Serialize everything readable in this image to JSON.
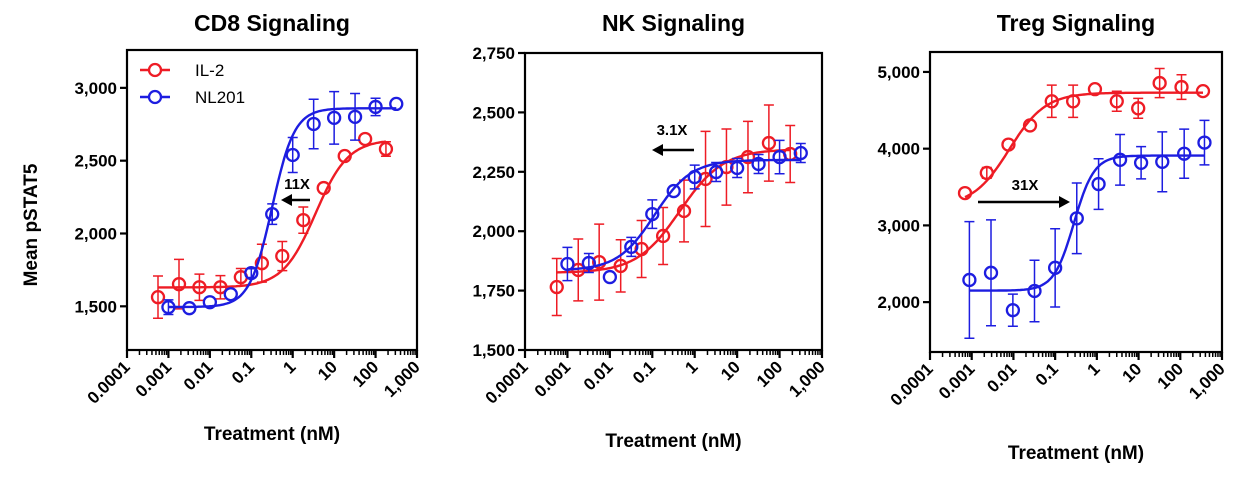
{
  "chart_data": [
    {
      "type": "scatter",
      "title": "CD8 Signaling",
      "xlabel": "Treatment (nM)",
      "ylabel": "Mean pSTAT5",
      "xscale": "log",
      "xlim": [
        0.0001,
        1000
      ],
      "ylim": [
        1200,
        3260
      ],
      "xticks": [
        "0.0001",
        "0.001",
        "0.01",
        "0.1",
        "1",
        "10",
        "100",
        "1,000"
      ],
      "yticks": [
        {
          "v": 1500,
          "label": "1,500"
        },
        {
          "v": 2000,
          "label": "2,000"
        },
        {
          "v": 2500,
          "label": "2,500"
        },
        {
          "v": 3000,
          "label": "3,000"
        }
      ],
      "legend": {
        "position": "top-left",
        "entries": [
          "IL-2",
          "NL201"
        ]
      },
      "annotation": {
        "text": "11X",
        "direction": "left"
      },
      "series": [
        {
          "name": "IL-2",
          "color": "#ee1c25",
          "x": [
            0.00056,
            0.0018,
            0.0056,
            0.018,
            0.056,
            0.18,
            0.56,
            1.8,
            5.6,
            18,
            56,
            178
          ],
          "y": [
            1563,
            1652,
            1631,
            1631,
            1700,
            1796,
            1845,
            2092,
            2312,
            2532,
            2649,
            2580
          ],
          "err": [
            145,
            170,
            90,
            80,
            60,
            130,
            100,
            90,
            0,
            0,
            0,
            50
          ],
          "fit": {
            "bottom": 1630,
            "top": 2645,
            "log_ec50": 0.55,
            "hill": 1.1
          }
        },
        {
          "name": "NL201",
          "color": "#1d1de0",
          "x": [
            0.001,
            0.0032,
            0.01,
            0.032,
            0.1,
            0.32,
            1,
            3.2,
            10,
            32,
            100,
            316
          ],
          "y": [
            1494,
            1487,
            1528,
            1583,
            1728,
            2133,
            2539,
            2752,
            2794,
            2801,
            2869,
            2890
          ],
          "err": [
            50,
            0,
            0,
            0,
            30,
            70,
            120,
            170,
            180,
            160,
            60,
            0
          ],
          "fit": {
            "bottom": 1495,
            "top": 2860,
            "log_ec50": -0.5,
            "hill": 1.6
          }
        }
      ]
    },
    {
      "type": "scatter",
      "title": "NK Signaling",
      "xlabel": "Treatment (nM)",
      "ylabel": "",
      "xscale": "log",
      "xlim": [
        0.0001,
        1000
      ],
      "ylim": [
        1500,
        2750
      ],
      "xticks": [
        "0.0001",
        "0.001",
        "0.01",
        "0.1",
        "1",
        "10",
        "100",
        "1,000"
      ],
      "yticks": [
        {
          "v": 1500,
          "label": "1,500"
        },
        {
          "v": 1750,
          "label": "1,750"
        },
        {
          "v": 2000,
          "label": "2,000"
        },
        {
          "v": 2250,
          "label": "2,250"
        },
        {
          "v": 2500,
          "label": "2,500"
        },
        {
          "v": 2750,
          "label": "2,750"
        }
      ],
      "annotation": {
        "text": "3.1X",
        "direction": "left"
      },
      "series": [
        {
          "name": "IL-2",
          "color": "#ee1c25",
          "x": [
            0.00056,
            0.0018,
            0.0056,
            0.018,
            0.056,
            0.18,
            0.56,
            1.8,
            5.6,
            18,
            56,
            178
          ],
          "y": [
            1765,
            1837,
            1870,
            1854,
            1925,
            1980,
            2085,
            2220,
            2270,
            2312,
            2371,
            2325
          ],
          "err": [
            120,
            130,
            160,
            110,
            120,
            120,
            130,
            200,
            160,
            150,
            160,
            120
          ],
          "fit": {
            "bottom": 1825,
            "top": 2345,
            "log_ec50": -0.35,
            "hill": 0.85
          }
        },
        {
          "name": "NL201",
          "color": "#1d1de0",
          "x": [
            0.001,
            0.0032,
            0.01,
            0.032,
            0.1,
            0.32,
            1,
            3.2,
            10,
            32,
            100,
            316
          ],
          "y": [
            1862,
            1866,
            1807,
            1934,
            2072,
            2169,
            2228,
            2249,
            2266,
            2283,
            2312,
            2329
          ],
          "err": [
            70,
            40,
            0,
            40,
            60,
            0,
            50,
            40,
            40,
            40,
            70,
            40
          ],
          "fit": {
            "bottom": 1835,
            "top": 2300,
            "log_ec50": -0.95,
            "hill": 1.0
          }
        }
      ]
    },
    {
      "type": "scatter",
      "title": "Treg Signaling",
      "xlabel": "Treatment (nM)",
      "ylabel": "",
      "xscale": "log",
      "xlim": [
        0.0001,
        1000
      ],
      "ylim": [
        1350,
        5260
      ],
      "xticks": [
        "0.0001",
        "0.001",
        "0.01",
        "0.1",
        "1",
        "10",
        "100",
        "1,000"
      ],
      "yticks": [
        {
          "v": 2000,
          "label": "2,000"
        },
        {
          "v": 3000,
          "label": "3,000"
        },
        {
          "v": 4000,
          "label": "4,000"
        },
        {
          "v": 5000,
          "label": "5,000"
        }
      ],
      "annotation": {
        "text": "31X",
        "direction": "right"
      },
      "series": [
        {
          "name": "IL-2",
          "color": "#ee1c25",
          "x": [
            0.00069,
            0.0023,
            0.0076,
            0.025,
            0.083,
            0.27,
            0.9,
            3,
            9.8,
            32,
            107,
            350
          ],
          "y": [
            3421,
            3684,
            4053,
            4303,
            4618,
            4618,
            4776,
            4618,
            4526,
            4855,
            4803,
            4750
          ],
          "err": [
            0,
            70,
            0,
            0,
            210,
            210,
            0,
            130,
            130,
            190,
            160,
            0
          ],
          "fit": {
            "bottom": 3250,
            "top": 4730,
            "log_ec50": -2.1,
            "hill": 1.0
          }
        },
        {
          "name": "NL201",
          "color": "#1d1de0",
          "x": [
            0.00088,
            0.0029,
            0.0097,
            0.032,
            0.1,
            0.33,
            1.1,
            3.6,
            11.5,
            37,
            124,
            380
          ],
          "y": [
            2289,
            2382,
            1895,
            2145,
            2447,
            3092,
            3539,
            3855,
            3816,
            3829,
            3934,
            4079
          ],
          "err": [
            760,
            690,
            210,
            400,
            510,
            460,
            330,
            330,
            210,
            390,
            320,
            290
          ],
          "fit": {
            "bottom": 2150,
            "top": 3910,
            "log_ec50": -0.55,
            "hill": 1.8
          }
        }
      ]
    }
  ]
}
